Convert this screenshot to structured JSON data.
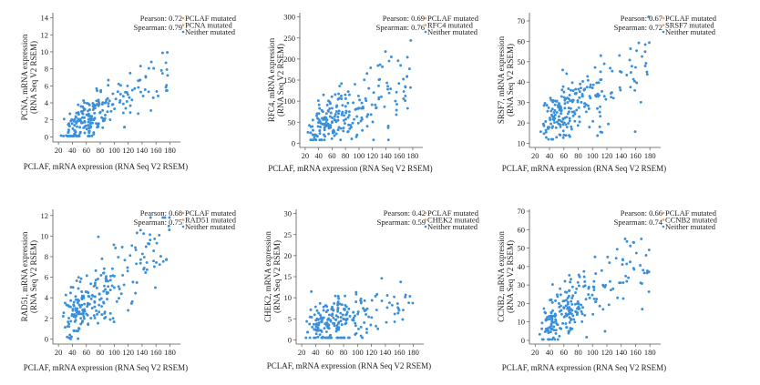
{
  "colors": {
    "point": "#3a8fd8",
    "axis": "#555555",
    "legend_mutated": "#e8a060",
    "legend_neither": "#3a8fd8"
  },
  "chart_data": [
    {
      "type": "scatter",
      "xlabel": "PCLAF, mRNA expression (RNA Seq V2 RSEM)",
      "ylabel": "PCNA, mRNA expression (RNA Seq V2 RSEM)",
      "xticks": [
        20,
        40,
        60,
        80,
        100,
        120,
        140,
        160,
        180
      ],
      "yticks": [
        0,
        2,
        4,
        6,
        8,
        10,
        12,
        14
      ],
      "xlim": [
        12,
        195
      ],
      "ylim": [
        -0.6,
        14.6
      ],
      "pearson": "Pearson: 0.72",
      "spearman": "Spearman: 0.79",
      "legend": [
        "PCLAF mutated",
        "PCNA mutated",
        "Neither mutated"
      ],
      "trend": {
        "slope": 0.052,
        "intercept": -1.2,
        "spread": 1.4,
        "ymin": 0.1,
        "ymax": 12.6
      },
      "series": [
        {
          "name": "Neither mutated",
          "x": [],
          "y": []
        }
      ]
    },
    {
      "type": "scatter",
      "xlabel": "PCLAF, mRNA expression (RNA Seq V2 RSEM)",
      "ylabel": "RFC4, mRNA expression (RNA Seq V2 RSEM)",
      "xticks": [
        20,
        40,
        60,
        80,
        100,
        120,
        140,
        160,
        180
      ],
      "yticks": [
        0,
        50,
        100,
        150,
        200,
        250,
        300
      ],
      "xlim": [
        12,
        195
      ],
      "ylim": [
        -10,
        310
      ],
      "pearson": "Pearson: 0.69",
      "spearman": "Spearman: 0.76",
      "legend": [
        "PCLAF mutated",
        "RFC4 mutated",
        "Neither mutated"
      ],
      "trend": {
        "slope": 0.9,
        "intercept": 0,
        "spread": 32,
        "ymin": 8,
        "ymax": 290
      },
      "series": [
        {
          "name": "Neither mutated",
          "x": [],
          "y": []
        }
      ]
    },
    {
      "type": "scatter",
      "xlabel": "PCLAF, mRNA expression (RNA Seq V2 RSEM)",
      "ylabel": "SRSF7, mRNA expression (RNA Seq V2 RSEM)",
      "xticks": [
        20,
        40,
        60,
        80,
        100,
        120,
        140,
        160,
        180
      ],
      "yticks": [
        10,
        20,
        30,
        40,
        50,
        60,
        70
      ],
      "xlim": [
        12,
        195
      ],
      "ylim": [
        8,
        74
      ],
      "pearson": "Pearson: 0.67",
      "spearman": "Spearman: 0.72",
      "legend": [
        "PCLAF mutated",
        "SRSF7 mutated",
        "Neither mutated"
      ],
      "trend": {
        "slope": 0.2,
        "intercept": 14,
        "spread": 7,
        "ymin": 12,
        "ymax": 72
      },
      "series": [
        {
          "name": "Neither mutated",
          "x": [],
          "y": []
        }
      ]
    },
    {
      "type": "scatter",
      "xlabel": "PCLAF, mRNA expression (RNA Seq V2 RSEM)",
      "ylabel": "RAD51, mRNA expression (RNA Seq V2 RSEM)",
      "xticks": [
        20,
        40,
        60,
        80,
        100,
        120,
        140,
        160,
        180
      ],
      "yticks": [
        0,
        2,
        4,
        6,
        8,
        10,
        12
      ],
      "xlim": [
        12,
        195
      ],
      "ylim": [
        -0.5,
        12.6
      ],
      "pearson": "Pearson: 0.68",
      "spearman": "Spearman: 0.75",
      "legend": [
        "PCLAF mutated",
        "RAD51 mutated",
        "Neither mutated"
      ],
      "trend": {
        "slope": 0.055,
        "intercept": 0.2,
        "spread": 1.5,
        "ymin": 0,
        "ymax": 11.8
      },
      "series": [
        {
          "name": "Neither mutated",
          "x": [],
          "y": []
        }
      ]
    },
    {
      "type": "scatter",
      "xlabel": "PCLAF, mRNA expression (RNA Seq V2 RSEM)",
      "ylabel": "CHEK2, mRNA expression (RNA Seq V2 RSEM)",
      "xticks": [
        20,
        40,
        60,
        80,
        100,
        120,
        140,
        160,
        180
      ],
      "yticks": [
        0,
        5,
        10,
        15,
        20,
        25,
        30
      ],
      "xlim": [
        12,
        195
      ],
      "ylim": [
        -1,
        31
      ],
      "pearson": "Pearson: 0.42",
      "spearman": "Spearman: 0.59",
      "legend": [
        "PCLAF mutated",
        "CHEK2 mutated",
        "Neither mutated"
      ],
      "trend": {
        "slope": 0.04,
        "intercept": 1.5,
        "spread": 2.8,
        "ymin": 0.5,
        "ymax": 28
      },
      "series": [
        {
          "name": "Neither mutated",
          "x": [],
          "y": []
        }
      ]
    },
    {
      "type": "scatter",
      "xlabel": "PCLAF, mRNA expression (RNA Seq V2 RSEM)",
      "ylabel": "CCNB2, mRNA expression (RNA Seq V2 RSEM)",
      "xticks": [
        20,
        40,
        60,
        80,
        100,
        120,
        140,
        160,
        180
      ],
      "yticks": [
        0,
        10,
        20,
        30,
        40,
        50,
        60,
        70
      ],
      "xlim": [
        12,
        195
      ],
      "ylim": [
        -2,
        71
      ],
      "pearson": "Pearson: 0.66",
      "spearman": "Spearman: 0.74",
      "legend": [
        "PCLAF mutated",
        "CCNB2 mutated",
        "Neither mutated"
      ],
      "trend": {
        "slope": 0.27,
        "intercept": -1,
        "spread": 8,
        "ymin": 0.5,
        "ymax": 55
      },
      "series": [
        {
          "name": "Neither mutated",
          "x": [],
          "y": []
        }
      ]
    }
  ]
}
